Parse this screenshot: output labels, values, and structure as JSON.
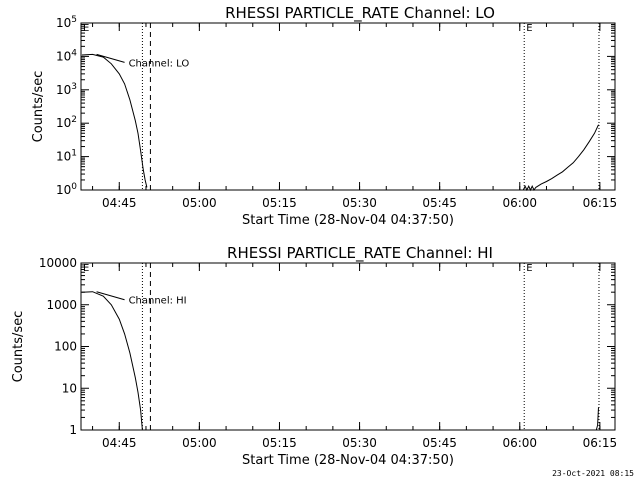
{
  "chart_data": [
    {
      "type": "line",
      "title": "RHESSI PARTICLE_RATE Channel: LO",
      "xlabel": "Start Time (28-Nov-04 04:37:50)",
      "ylabel": "Counts/sec",
      "y_scale": "log",
      "ylim": [
        1,
        100000
      ],
      "y_ticks": [
        {
          "value": 1,
          "label": "10^0"
        },
        {
          "value": 10,
          "label": "10^1"
        },
        {
          "value": 100,
          "label": "10^2"
        },
        {
          "value": 1000,
          "label": "10^3"
        },
        {
          "value": 10000,
          "label": "10^4"
        },
        {
          "value": 100000,
          "label": "10^5"
        }
      ],
      "xlim": [
        "04:37:50",
        "06:17:50"
      ],
      "x_ticks": [
        "04:45",
        "05:00",
        "05:15",
        "05:30",
        "05:45",
        "06:00",
        "06:15"
      ],
      "series": [
        {
          "name": "Channel: LO",
          "segments": [
            [
              [
                "04:38:00",
                11000
              ],
              [
                "04:40:00",
                11500
              ],
              [
                "04:42:00",
                9500
              ],
              [
                "04:43:30",
                6000
              ],
              [
                "04:45:00",
                3000
              ],
              [
                "04:46:00",
                1500
              ],
              [
                "04:47:00",
                500
              ],
              [
                "04:48:00",
                120
              ],
              [
                "04:48:30",
                50
              ],
              [
                "04:49:00",
                15
              ],
              [
                "04:49:30",
                4
              ],
              [
                "04:49:50",
                2
              ],
              [
                "04:50:10",
                1.2
              ]
            ],
            [
              [
                "06:00:40",
                1
              ],
              [
                "06:01:00",
                1.3
              ],
              [
                "06:01:20",
                1
              ],
              [
                "06:01:40",
                1.3
              ],
              [
                "06:02:00",
                1
              ],
              [
                "06:02:20",
                1.3
              ],
              [
                "06:02:40",
                1
              ],
              [
                "06:03:00",
                1.2
              ],
              [
                "06:04:00",
                1.5
              ],
              [
                "06:05:00",
                1.8
              ],
              [
                "06:06:00",
                2.2
              ],
              [
                "06:07:00",
                2.8
              ],
              [
                "06:08:00",
                3.5
              ],
              [
                "06:09:00",
                4.8
              ],
              [
                "06:10:00",
                6.5
              ],
              [
                "06:11:00",
                10
              ],
              [
                "06:12:00",
                16
              ],
              [
                "06:13:00",
                28
              ],
              [
                "06:14:00",
                50
              ],
              [
                "06:14:45",
                90
              ]
            ]
          ]
        }
      ],
      "markers": [
        {
          "time": "04:37:50",
          "label": "E",
          "style": "none"
        },
        {
          "time": "04:49:20",
          "label": "",
          "style": "dotted"
        },
        {
          "time": "04:50:50",
          "label": "",
          "style": "dashed"
        },
        {
          "time": "06:00:50",
          "label": "E",
          "style": "dotted"
        },
        {
          "time": "06:14:50",
          "label": "",
          "style": "dotted"
        }
      ],
      "legend": "top-left"
    },
    {
      "type": "line",
      "title": "RHESSI PARTICLE_RATE Channel: HI",
      "xlabel": "Start Time (28-Nov-04 04:37:50)",
      "ylabel": "Counts/sec",
      "y_scale": "log",
      "ylim": [
        1,
        10000
      ],
      "y_ticks": [
        {
          "value": 1,
          "label": "1"
        },
        {
          "value": 10,
          "label": "10"
        },
        {
          "value": 100,
          "label": "100"
        },
        {
          "value": 1000,
          "label": "1000"
        },
        {
          "value": 10000,
          "label": "10000"
        }
      ],
      "xlim": [
        "04:37:50",
        "06:17:50"
      ],
      "x_ticks": [
        "04:45",
        "05:00",
        "05:15",
        "05:30",
        "05:45",
        "06:00",
        "06:15"
      ],
      "series": [
        {
          "name": "Channel: HI",
          "segments": [
            [
              [
                "04:38:00",
                2000
              ],
              [
                "04:40:00",
                2050
              ],
              [
                "04:42:00",
                1600
              ],
              [
                "04:43:30",
                1000
              ],
              [
                "04:45:00",
                450
              ],
              [
                "04:46:00",
                200
              ],
              [
                "04:47:00",
                70
              ],
              [
                "04:48:00",
                18
              ],
              [
                "04:48:30",
                8
              ],
              [
                "04:49:00",
                3
              ],
              [
                "04:49:20",
                1
              ]
            ],
            [
              [
                "06:14:20",
                1
              ],
              [
                "06:14:35",
                1.3
              ],
              [
                "06:14:45",
                3.5
              ]
            ]
          ]
        }
      ],
      "markers": [
        {
          "time": "04:37:50",
          "label": "E",
          "style": "none"
        },
        {
          "time": "04:49:20",
          "label": "",
          "style": "dotted"
        },
        {
          "time": "04:50:50",
          "label": "",
          "style": "dashed"
        },
        {
          "time": "06:00:50",
          "label": "E",
          "style": "dotted"
        },
        {
          "time": "06:14:50",
          "label": "",
          "style": "dotted"
        }
      ],
      "legend": "top-left"
    }
  ],
  "timestamp": "23-Oct-2021 08:15"
}
